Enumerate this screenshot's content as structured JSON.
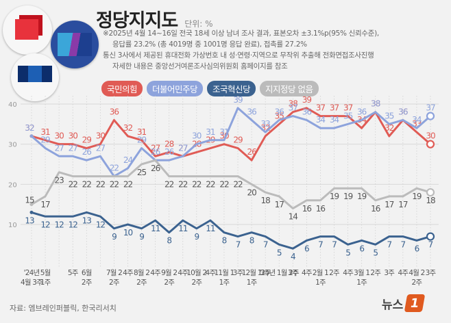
{
  "title": "정당지지도",
  "unit": "단위: %",
  "notes": [
    "※2025년 4월 14~16일 전국 18세 이상 남녀 조사 결과, 표본오차 ±3.1%p(95% 신뢰수준),",
    "응답률 23.2% (총 4019명 중 1001명 응답 완료), 접촉률 27.2%",
    "통신 3사에서 제공된 휴대전화 가상번호 내 성·연령·지역으로 무작위 추출해 전화면접조사진행",
    "자세한 내용은 중앙선거여론조사심의위원회 홈페이지를 참조"
  ],
  "source": "자료: 엠브레인퍼블릭, 한국리서치",
  "brand": {
    "text": "뉴스",
    "badge": "1"
  },
  "logos": [
    {
      "name": "party-logo-red",
      "colors": [
        "#e8323c",
        "#c0121e"
      ]
    },
    {
      "name": "party-logo-blue",
      "colors": [
        "#1a3f9a",
        "#2e8bd0",
        "#7a3aa0"
      ]
    },
    {
      "name": "party-logo-navy",
      "colors": [
        "#0c2d6b",
        "#1d5fb4"
      ]
    }
  ],
  "chart_data": {
    "type": "line",
    "title": "정당지지도",
    "yaxis_ticks": [
      10,
      20,
      30,
      40
    ],
    "ylim": [
      5,
      42
    ],
    "grid": true,
    "x": [
      "'24년 4월 3주",
      "5월 1주",
      "",
      "5월 3주",
      "6월 2주",
      "",
      "7월 2주",
      "8월 4주",
      "8월 2주",
      "",
      "9월 2주",
      "9월 4주",
      "10월 2주",
      "",
      "11월 1주",
      "11월 3주",
      "12월 1주",
      "12월 3주",
      "'25년 1월 2주",
      "3주",
      "4주",
      "2월 1주",
      "2주",
      "4주",
      "3월 1주",
      "2주",
      "3주",
      "4주",
      "4월 2주",
      "3주"
    ],
    "x_labels": [
      {
        "i": 0,
        "top": "'24년",
        "bottom": "4월 3주"
      },
      {
        "i": 1,
        "top": "5월",
        "bottom": "1주"
      },
      {
        "i": 3,
        "top": "5주",
        "bottom": ""
      },
      {
        "i": 4,
        "top": "6월",
        "bottom": "2주"
      },
      {
        "i": 6,
        "top": "7월 2",
        "bottom": "2주"
      },
      {
        "i": 7,
        "top": "4주",
        "bottom": ""
      },
      {
        "i": 8,
        "top": "8월 2",
        "bottom": "2주"
      },
      {
        "i": 9,
        "top": "4주",
        "bottom": ""
      },
      {
        "i": 10,
        "top": "9월 2",
        "bottom": "2주"
      },
      {
        "i": 11,
        "top": "4주",
        "bottom": ""
      },
      {
        "i": 12,
        "top": "10월 2",
        "bottom": "2주"
      },
      {
        "i": 13,
        "top": "4주",
        "bottom": ""
      },
      {
        "i": 14,
        "top": "11월 1",
        "bottom": "1주"
      },
      {
        "i": 15,
        "top": "3주",
        "bottom": ""
      },
      {
        "i": 16,
        "top": "12월 1",
        "bottom": "1주"
      },
      {
        "i": 17,
        "top": "3주",
        "bottom": ""
      },
      {
        "i": 18,
        "top": "'25년 1월 2주",
        "bottom": ""
      },
      {
        "i": 19,
        "top": "3주",
        "bottom": ""
      },
      {
        "i": 20,
        "top": "4주",
        "bottom": ""
      },
      {
        "i": 21,
        "top": "2월 1",
        "bottom": "1주"
      },
      {
        "i": 22,
        "top": "2주",
        "bottom": ""
      },
      {
        "i": 23,
        "top": "4주",
        "bottom": ""
      },
      {
        "i": 24,
        "top": "3월 1",
        "bottom": "1주"
      },
      {
        "i": 25,
        "top": "2주",
        "bottom": ""
      },
      {
        "i": 26,
        "top": "3주",
        "bottom": ""
      },
      {
        "i": 27,
        "top": "4주",
        "bottom": ""
      },
      {
        "i": 28,
        "top": "4월 2",
        "bottom": "2주"
      },
      {
        "i": 29,
        "top": "3주",
        "bottom": ""
      }
    ],
    "series": [
      {
        "name": "국민의힘",
        "color": "#e05b55",
        "values": [
          32,
          31,
          30,
          30,
          29,
          30,
          36,
          32,
          31,
          27,
          28,
          27,
          28,
          29,
          30,
          29,
          26,
          32,
          35,
          38,
          39,
          37,
          37,
          37,
          34,
          38,
          32,
          36,
          33,
          30
        ]
      },
      {
        "name": "더불어민주당",
        "color": "#8da3dc",
        "values": [
          32,
          29,
          27,
          27,
          26,
          27,
          22,
          24,
          29,
          26,
          26,
          27,
          30,
          31,
          31,
          39,
          36,
          33,
          36,
          37,
          36,
          34,
          34,
          35,
          36,
          38,
          35,
          36,
          34,
          37
        ]
      },
      {
        "name": "조국혁신당",
        "color": "#3b628f",
        "values": [
          13,
          12,
          12,
          12,
          13,
          12,
          9,
          10,
          9,
          11,
          8,
          11,
          9,
          11,
          8,
          7,
          8,
          7,
          5,
          4,
          6,
          7,
          7,
          5,
          6,
          5,
          7,
          7,
          6,
          7
        ]
      },
      {
        "name": "지지정당 없음",
        "color": "#bbbbbb",
        "values": [
          15,
          17,
          23,
          22,
          22,
          22,
          22,
          22,
          25,
          26,
          22,
          22,
          22,
          22,
          22,
          22,
          20,
          18,
          17,
          14,
          16,
          16,
          19,
          19,
          19,
          16,
          17,
          17,
          19,
          18
        ]
      }
    ]
  }
}
